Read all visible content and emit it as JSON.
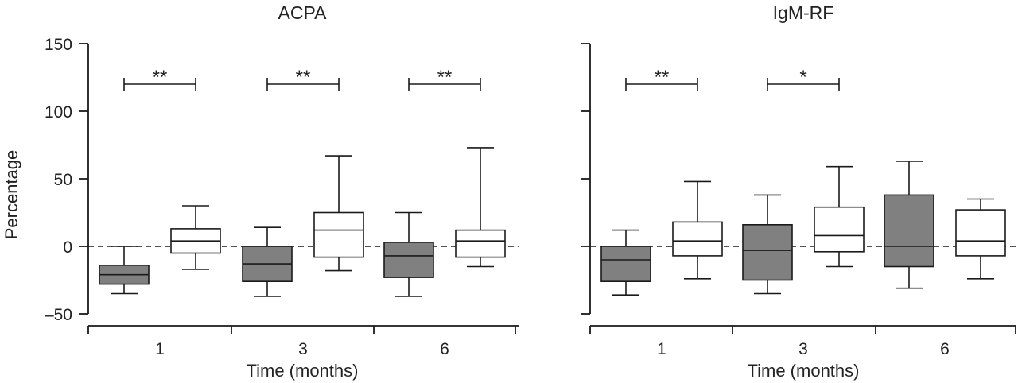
{
  "chart_data": [
    {
      "type": "box",
      "title": "ACPA",
      "xlabel": "Time (months)",
      "ylabel": "Percentage",
      "ylim": [
        -50,
        150
      ],
      "yticks": [
        -50,
        0,
        50,
        100,
        150
      ],
      "reference_line": 0,
      "categories": [
        "1",
        "3",
        "6"
      ],
      "series": [
        {
          "color": "#808080",
          "boxes": [
            {
              "min": -35,
              "q1": -28,
              "median": -21,
              "q3": -14,
              "max": 0
            },
            {
              "min": -37,
              "q1": -26,
              "median": -13,
              "q3": 0,
              "max": 14
            },
            {
              "min": -37,
              "q1": -23,
              "median": -7,
              "q3": 3,
              "max": 25
            }
          ]
        },
        {
          "color": "#ffffff",
          "boxes": [
            {
              "min": -17,
              "q1": -5,
              "median": 4,
              "q3": 13,
              "max": 30
            },
            {
              "min": -18,
              "q1": -8,
              "median": 12,
              "q3": 25,
              "max": 67
            },
            {
              "min": -15,
              "q1": -8,
              "median": 4,
              "q3": 12,
              "max": 73
            }
          ]
        }
      ],
      "significance": [
        {
          "category": "1",
          "label": "**",
          "y": 120
        },
        {
          "category": "3",
          "label": "**",
          "y": 120
        },
        {
          "category": "6",
          "label": "**",
          "y": 120
        }
      ]
    },
    {
      "type": "box",
      "title": "IgM-RF",
      "xlabel": "Time (months)",
      "ylabel": "",
      "ylim": [
        -50,
        150
      ],
      "yticks": [
        -50,
        0,
        50,
        100,
        150
      ],
      "show_tick_labels": false,
      "reference_line": 0,
      "categories": [
        "1",
        "3",
        "6"
      ],
      "series": [
        {
          "color": "#808080",
          "boxes": [
            {
              "min": -36,
              "q1": -26,
              "median": -10,
              "q3": 0,
              "max": 12
            },
            {
              "min": -35,
              "q1": -25,
              "median": -3,
              "q3": 16,
              "max": 38
            },
            {
              "min": -31,
              "q1": -15,
              "median": 0,
              "q3": 38,
              "max": 63
            }
          ]
        },
        {
          "color": "#ffffff",
          "boxes": [
            {
              "min": -24,
              "q1": -7,
              "median": 4,
              "q3": 18,
              "max": 48
            },
            {
              "min": -15,
              "q1": -4,
              "median": 8,
              "q3": 29,
              "max": 59
            },
            {
              "min": -24,
              "q1": -7,
              "median": 4,
              "q3": 27,
              "max": 35
            }
          ]
        }
      ],
      "significance": [
        {
          "category": "1",
          "label": "**",
          "y": 120
        },
        {
          "category": "3",
          "label": "*",
          "y": 120
        }
      ]
    }
  ]
}
